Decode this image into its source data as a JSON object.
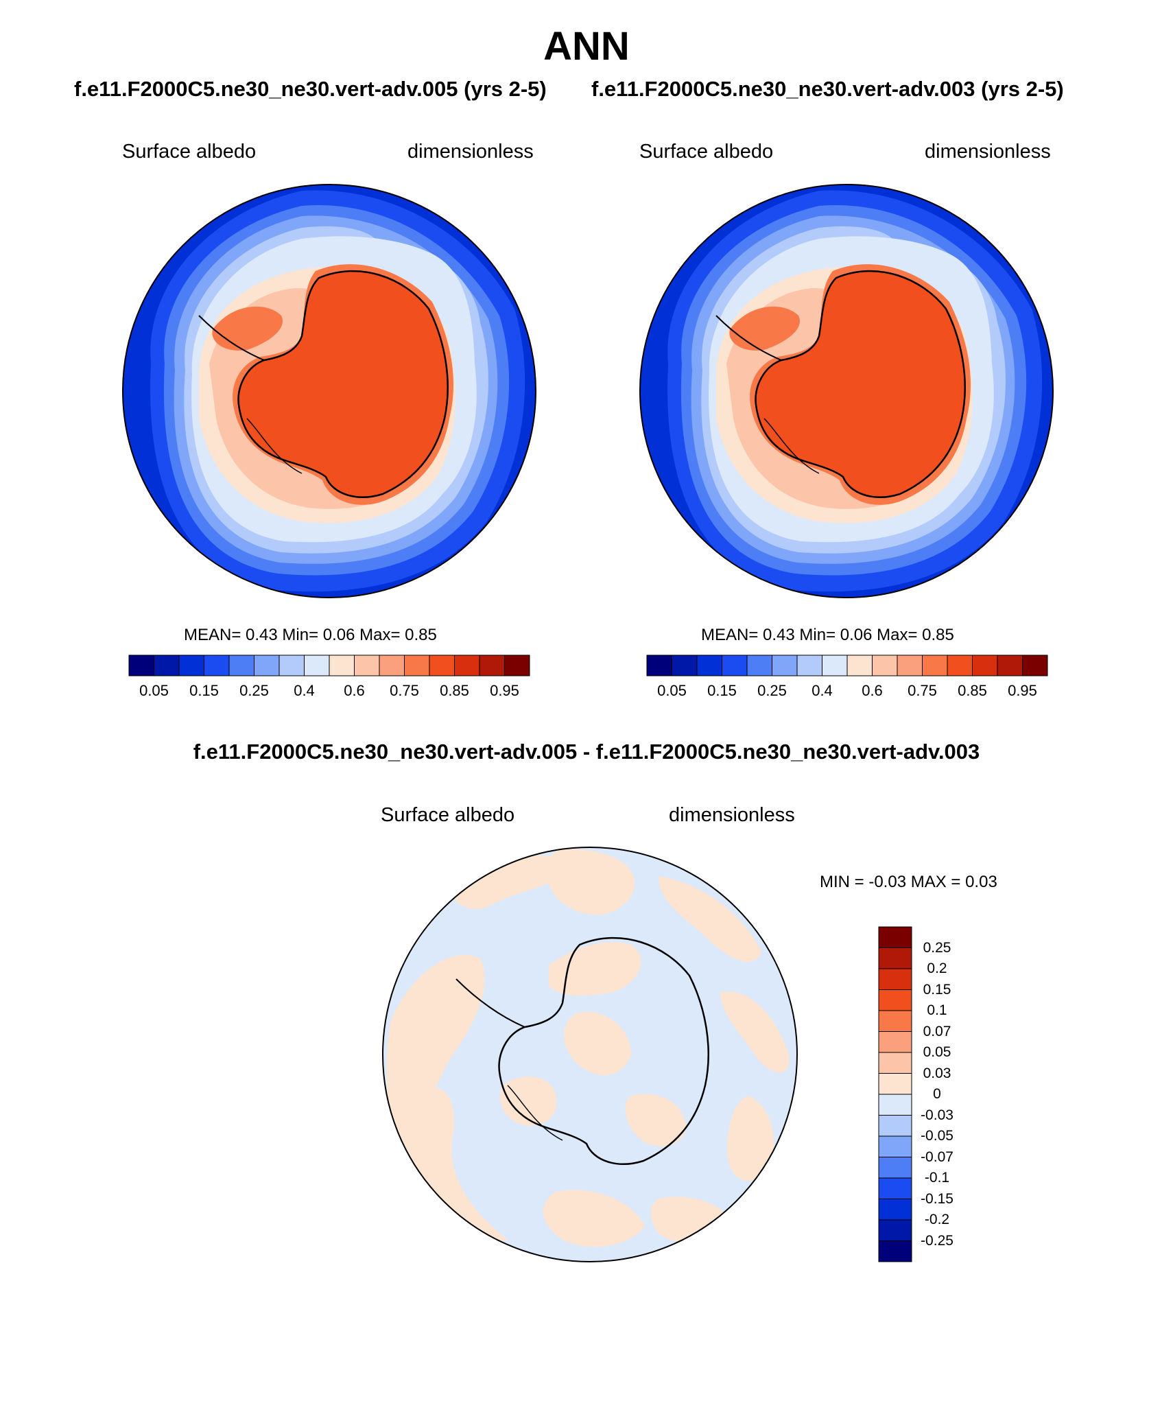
{
  "title": "ANN",
  "panels": [
    {
      "case": "f.e11.F2000C5.ne30_ne30.vert-adv.005 (yrs 2-5)",
      "variable": "Surface albedo",
      "units": "dimensionless",
      "stats": "MEAN=   0.43   Min=   0.06   Max=   0.85",
      "colorbar_ticks": [
        "0.05",
        "0.15",
        "0.25",
        "0.4",
        "0.6",
        "0.75",
        "0.85",
        "0.95"
      ]
    },
    {
      "case": "f.e11.F2000C5.ne30_ne30.vert-adv.003 (yrs 2-5)",
      "variable": "Surface albedo",
      "units": "dimensionless",
      "stats": "MEAN=   0.43   Min=   0.06   Max=   0.85",
      "colorbar_ticks": [
        "0.05",
        "0.15",
        "0.25",
        "0.4",
        "0.6",
        "0.75",
        "0.85",
        "0.95"
      ]
    }
  ],
  "diff": {
    "title": "f.e11.F2000C5.ne30_ne30.vert-adv.005 - f.e11.F2000C5.ne30_ne30.vert-adv.003",
    "variable": "Surface albedo",
    "units": "dimensionless",
    "stats": "MIN =  -0.03 MAX =    0.03",
    "colorbar_ticks": [
      "0.25",
      "0.2",
      "0.15",
      "0.1",
      "0.07",
      "0.05",
      "0.03",
      "0",
      "-0.03",
      "-0.05",
      "-0.07",
      "-0.1",
      "-0.15",
      "-0.2",
      "-0.25"
    ]
  },
  "colors": {
    "abs_scale": [
      "#00007a",
      "#0018a8",
      "#0030d6",
      "#1a4cf2",
      "#4d7ef5",
      "#7fa6f8",
      "#b2cbfa",
      "#dce9fb",
      "#fde4d0",
      "#fcc4a8",
      "#fba07d",
      "#f87848",
      "#f24f1e",
      "#d8300e",
      "#b01808",
      "#7a0000"
    ],
    "diff_scale": [
      "#7a0000",
      "#b01808",
      "#d8300e",
      "#f24f1e",
      "#f87848",
      "#fba07d",
      "#fcc4a8",
      "#fde4d0",
      "#dce9fb",
      "#b2cbfa",
      "#7fa6f8",
      "#4d7ef5",
      "#1a4cf2",
      "#0030d6",
      "#0018a8",
      "#00007a"
    ]
  }
}
